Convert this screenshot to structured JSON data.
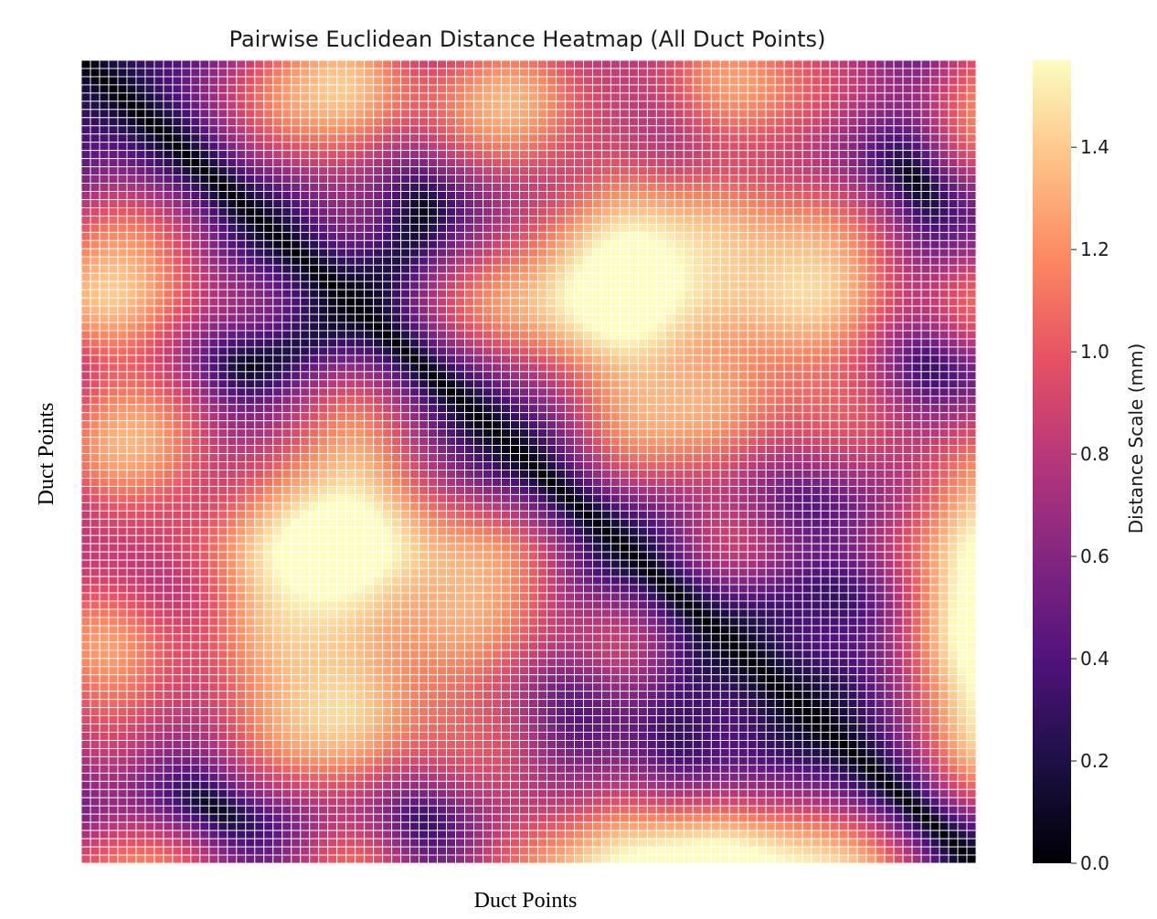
{
  "chart_data": {
    "type": "heatmap",
    "title": "Pairwise Euclidean Distance Heatmap (All Duct Points)",
    "xlabel": "Duct Points",
    "ylabel": "Duct Points",
    "n_rows": 98,
    "n_cols": 98,
    "colormap": "magma",
    "grid_lines": true,
    "grid_line_color": "#ffffff",
    "x_tick_labels_shown": false,
    "y_tick_labels_shown": false,
    "colorbar": {
      "label": "Distance Scale (mm)",
      "range": [
        0.0,
        1.57
      ],
      "ticks": [
        0.0,
        0.2,
        0.4,
        0.6,
        0.8,
        1.0,
        1.2,
        1.4
      ],
      "tick_labels": [
        "0.0",
        "0.2",
        "0.4",
        "0.6",
        "0.8",
        "1.0",
        "1.2",
        "1.4"
      ],
      "position": "right"
    }
  },
  "colors": {
    "magma_stops": [
      "#000004",
      "#1c1044",
      "#4f127b",
      "#812581",
      "#b5367a",
      "#e55064",
      "#fb8761",
      "#fec287",
      "#fcfdbf"
    ]
  }
}
